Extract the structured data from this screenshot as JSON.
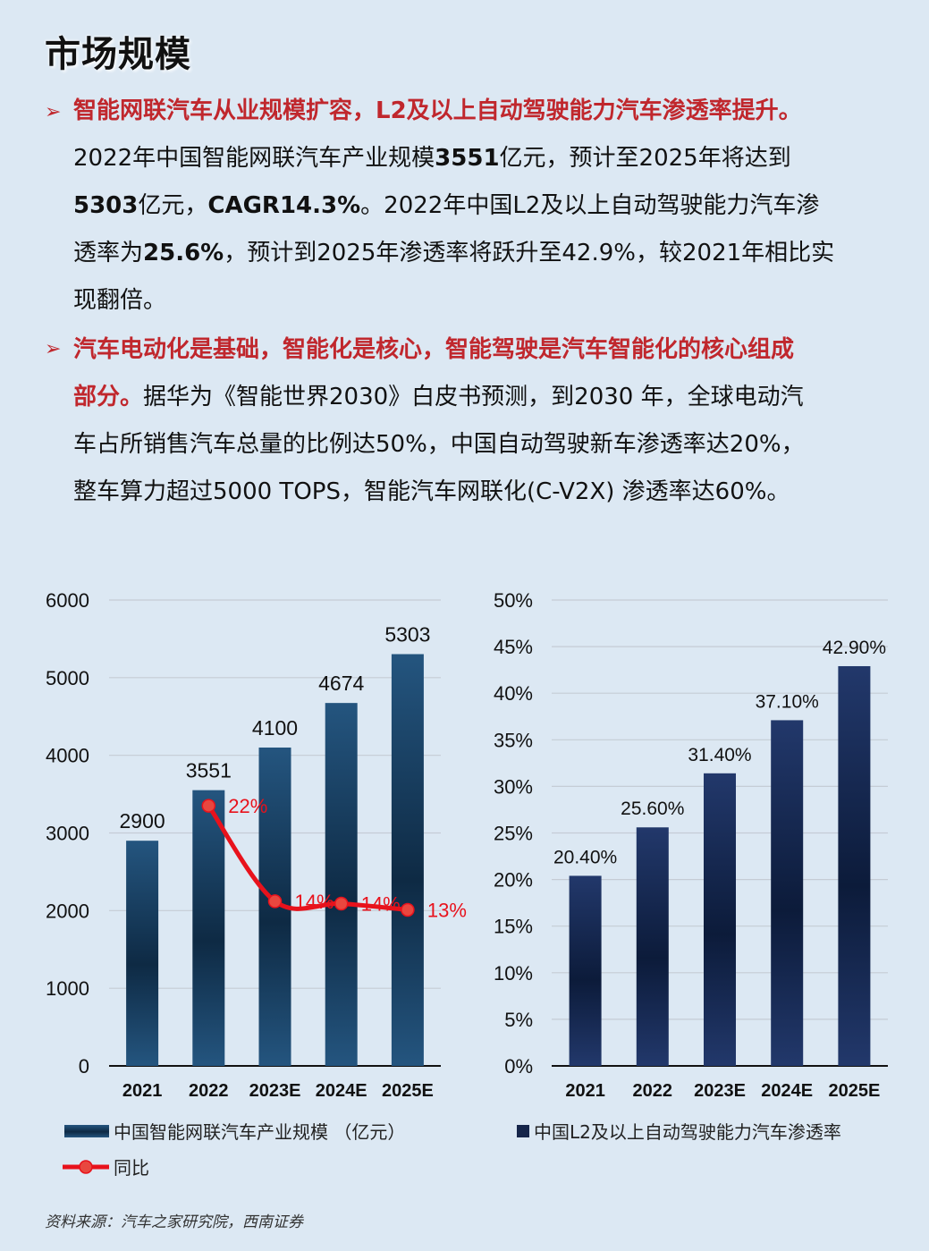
{
  "page": {
    "title": "市场规模",
    "source": "资料来源：汽车之家研究院，西南证券"
  },
  "bullets": [
    {
      "arrow": "➢",
      "lines": [
        [
          {
            "t": " 智能网联汽车从业规模扩容，L2及以上自动驾驶能力汽车渗透率提升。",
            "s": "red"
          }
        ],
        [
          {
            "t": "2022年中国智能网联汽车产业规模",
            "s": ""
          },
          {
            "t": "3551",
            "s": "b"
          },
          {
            "t": "亿元，预计至2025年将达到",
            "s": ""
          }
        ],
        [
          {
            "t": "5303",
            "s": "b"
          },
          {
            "t": "亿元，",
            "s": ""
          },
          {
            "t": "CAGR14.3%",
            "s": "b"
          },
          {
            "t": "。2022年中国L2及以上自动驾驶能力汽车渗",
            "s": ""
          }
        ],
        [
          {
            "t": "透率为",
            "s": ""
          },
          {
            "t": "25.6%",
            "s": "b"
          },
          {
            "t": "，预计到2025年渗透率将跃升至42.9%，较2021年相比实",
            "s": ""
          }
        ],
        [
          {
            "t": "现翻倍。",
            "s": ""
          }
        ]
      ]
    },
    {
      "arrow": "➢",
      "lines": [
        [
          {
            "t": "汽车电动化是基础，智能化是核心，智能驾驶是汽车智能化的核心组成",
            "s": "red"
          }
        ],
        [
          {
            "t": "部分。",
            "s": "red"
          },
          {
            "t": "据华为《智能世界2030》白皮书预测，到2030 年，全球电动汽",
            "s": ""
          }
        ],
        [
          {
            "t": "车占所销售汽车总量的比例达50%，中国自动驾驶新车渗透率达20%，",
            "s": ""
          }
        ],
        [
          {
            "t": "整车算力超过5000 TOPS，智能汽车网联化(C-V2X) 渗透率达60%。",
            "s": ""
          }
        ]
      ]
    }
  ],
  "colors": {
    "background": "#dce8f3",
    "accent_red": "#c0272d",
    "line_red": "#e8121c",
    "bar_left_light": "#24557f",
    "bar_left_dark": "#0e2a44",
    "bar_right_light": "#22386b",
    "bar_right_dark": "#0c1b3a",
    "grid": "#c9cfd6"
  },
  "chart_data": [
    {
      "type": "bar",
      "categories": [
        "2021",
        "2022",
        "2023E",
        "2024E",
        "2025E"
      ],
      "values": [
        2900,
        3551,
        4100,
        4674,
        5303
      ],
      "data_labels": [
        "2900",
        "3551",
        "4100",
        "4674",
        "5303"
      ],
      "yticks": [
        "0",
        "1000",
        "2000",
        "3000",
        "4000",
        "5000",
        "6000"
      ],
      "ylim": [
        0,
        6000
      ],
      "series_name": "中国智能网联汽车产业规模 （亿元）",
      "line_series": {
        "name": "同比",
        "values": [
          null,
          0.22,
          0.14,
          0.14,
          0.13
        ],
        "labels": [
          "",
          "22%",
          "14%",
          "14%",
          "13%"
        ],
        "plotted_y": [
          null,
          3350,
          2120,
          2090,
          2010
        ]
      },
      "grid": true,
      "legend": "bottom"
    },
    {
      "type": "bar",
      "categories": [
        "2021",
        "2022",
        "2023E",
        "2024E",
        "2025E"
      ],
      "values": [
        20.4,
        25.6,
        31.4,
        37.1,
        42.9
      ],
      "data_labels": [
        "20.40%",
        "25.60%",
        "31.40%",
        "37.10%",
        "42.90%"
      ],
      "yticks": [
        "0%",
        "5%",
        "10%",
        "15%",
        "20%",
        "25%",
        "30%",
        "35%",
        "40%",
        "45%",
        "50%"
      ],
      "ylim": [
        0,
        50
      ],
      "series_name": "中国L2及以上自动驾驶能力汽车渗透率",
      "grid": true,
      "legend": "bottom"
    }
  ]
}
